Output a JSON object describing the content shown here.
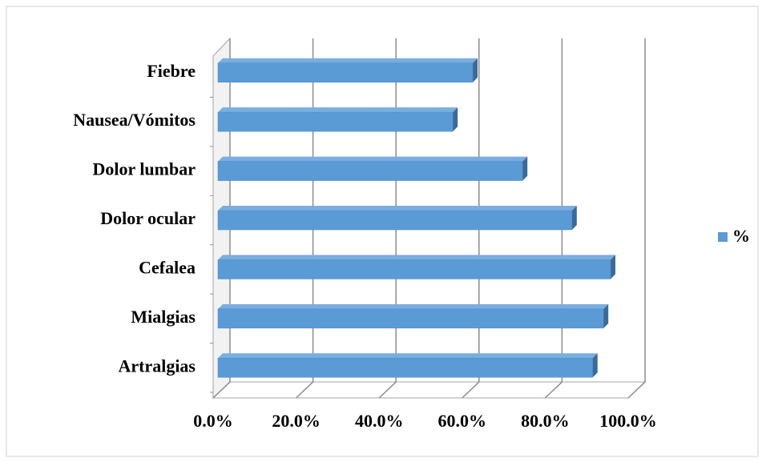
{
  "chart_data": {
    "type": "bar3d_horizontal",
    "categories": [
      "Artralgias",
      "Mialgias",
      "Cefalea",
      "Dolor ocular",
      "Dolor lumbar",
      "Nausea/Vómitos",
      "Fiebre"
    ],
    "series": [
      {
        "name": "%",
        "color": "#5b9bd5",
        "values": [
          90.3,
          92.9,
          94.6,
          85.3,
          73.4,
          56.6,
          61.4
        ]
      }
    ],
    "xlim": [
      0,
      100
    ],
    "xticks": [
      {
        "value": 0,
        "label": "0.0%"
      },
      {
        "value": 20,
        "label": "20.0%"
      },
      {
        "value": 40,
        "label": "40.0%"
      },
      {
        "value": 60,
        "label": "60.0%"
      },
      {
        "value": 80,
        "label": "80.0%"
      },
      {
        "value": 100,
        "label": "100.0%"
      }
    ],
    "grid": true,
    "legend": "right"
  }
}
